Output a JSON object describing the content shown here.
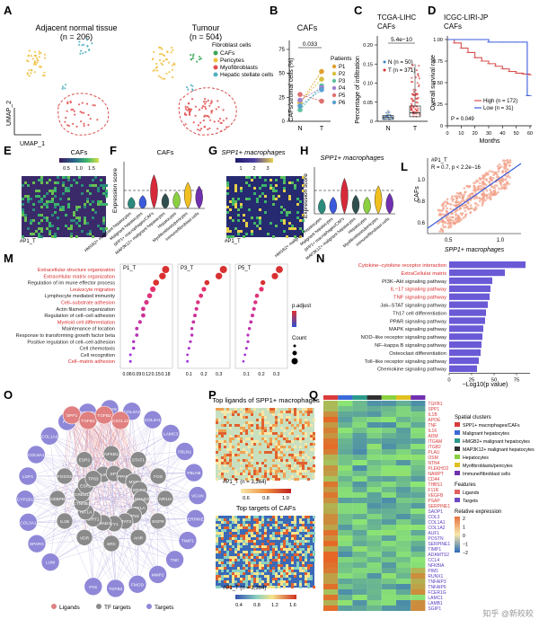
{
  "figure": {
    "watermark": "知乎 @新皎皎",
    "colors": {
      "red": "#d94f4f",
      "blue": "#3b5bdb",
      "purple": "#7b5bd6",
      "green": "#3aa655",
      "orange": "#f0a020",
      "teal": "#2a8a8a",
      "grey": "#8a8a8a"
    }
  },
  "panelA": {
    "label": "A",
    "left_title": "Adjacent normal tissue",
    "left_n": "(n = 206)",
    "right_title": "Tumour",
    "right_n": "(n = 504)",
    "axis_y": "UMAP_2",
    "axis_x": "UMAP_1",
    "legend_title": "Fibroblast cells",
    "legend": [
      {
        "name": "CAFs",
        "color": "#3aa655"
      },
      {
        "name": "Pericytes",
        "color": "#f0c040"
      },
      {
        "name": "Myofibroblasts",
        "color": "#e05050"
      },
      {
        "name": "Hepatic stellate cells",
        "color": "#50b0c0"
      }
    ]
  },
  "panelB": {
    "label": "B",
    "title": "CAFs",
    "ylabel": "CAFs/stromal cells (%)",
    "pval": "0.033",
    "legend_title": "Patients",
    "patients": [
      "P1",
      "P2",
      "P3",
      "P4",
      "P5",
      "P6"
    ],
    "chart_data": {
      "type": "scatter",
      "categories": [
        "N",
        "T"
      ],
      "ylim": [
        0,
        75
      ],
      "yticks": [
        "0",
        "25",
        "50",
        "75"
      ],
      "series": [
        {
          "name": "P1",
          "values": [
            19,
            52
          ]
        },
        {
          "name": "P2",
          "values": [
            20,
            44
          ]
        },
        {
          "name": "P3",
          "values": [
            12,
            37
          ]
        },
        {
          "name": "P4",
          "values": [
            22,
            35
          ]
        },
        {
          "name": "P5",
          "values": [
            28,
            21
          ]
        },
        {
          "name": "P6",
          "values": [
            16,
            33
          ]
        }
      ],
      "colors": [
        "#e0a030",
        "#d6c040",
        "#60c0a0",
        "#a080d0",
        "#e07070",
        "#5aa0d0"
      ]
    }
  },
  "panelC": {
    "label": "C",
    "title1": "TCGA-LIHC",
    "title2": "CAFs",
    "pval": "5.4e−10",
    "ylabel": "Percentage of infiltration",
    "legend": [
      "N (n = 50)",
      "T (n = 371)"
    ],
    "chart_data": {
      "type": "box",
      "categories": [
        "N",
        "T"
      ],
      "ylim": [
        0,
        0.2
      ],
      "yticks": [
        "0",
        "0.05",
        "0.10",
        "0.15",
        "0.20"
      ],
      "boxes": [
        {
          "name": "N",
          "q1": 0.005,
          "median": 0.01,
          "q3": 0.015,
          "whisker_high": 0.03
        },
        {
          "name": "T",
          "q1": 0.012,
          "median": 0.022,
          "q3": 0.04,
          "whisker_high": 0.15
        }
      ]
    }
  },
  "panelD": {
    "label": "D",
    "title1": "ICGC-LIRI-JP",
    "title2": "CAFs",
    "ylabel": "Overall survival rate",
    "xlabel": "Months",
    "pval": "P = 0.049",
    "legend": [
      {
        "name": "High (n = 172)",
        "color": "#d94f4f"
      },
      {
        "name": "Low (n = 31)",
        "color": "#3b5bdb"
      }
    ],
    "chart_data": {
      "type": "line",
      "xlim": [
        0,
        60
      ],
      "ylim": [
        0,
        1.0
      ],
      "xticks": [
        "0",
        "10",
        "20",
        "30",
        "40",
        "50",
        "60"
      ],
      "yticks": [
        "0",
        "0.25",
        "0.50",
        "0.75",
        "1.00"
      ],
      "series": [
        {
          "name": "High",
          "x": [
            0,
            5,
            10,
            15,
            20,
            25,
            30,
            35,
            40,
            45,
            50,
            55,
            60
          ],
          "y": [
            1.0,
            0.96,
            0.9,
            0.85,
            0.79,
            0.75,
            0.72,
            0.69,
            0.66,
            0.63,
            0.61,
            0.6,
            0.59
          ]
        },
        {
          "name": "Low",
          "x": [
            0,
            10,
            20,
            30,
            40,
            45,
            50,
            55,
            58,
            60
          ],
          "y": [
            1.0,
            1.0,
            1.0,
            0.97,
            0.97,
            0.97,
            0.97,
            0.97,
            0.35,
            0.35
          ]
        }
      ]
    }
  },
  "panelE": {
    "label": "E",
    "title": "CAFs",
    "sample": "#P1_T",
    "scale": [
      "0.5",
      "1.0",
      "1.5"
    ]
  },
  "panelF": {
    "label": "F",
    "title": "CAFs",
    "ylabel": "Expression score",
    "groups": [
      "HMGB2+ malignant hepatocytes",
      "Malignant hepatocytes",
      "SPP1+ macrophages/CAFs",
      "MAP3K12+ malignant hepatocytes",
      "Hepatocytes",
      "Myofibroblasts/pericytes",
      "Immune/fibroblast cells"
    ],
    "chart_data": {
      "type": "violin",
      "values": [
        0.3,
        0.35,
        0.9,
        0.4,
        0.45,
        0.7,
        0.6
      ],
      "ylim": [
        0,
        1.2
      ]
    }
  },
  "panelG": {
    "label": "G",
    "title": "SPP1+ macrophages",
    "sample": "#P1_T",
    "scale": [
      "1",
      "2",
      "3"
    ]
  },
  "panelH": {
    "label": "H",
    "title": "SPP1+ macrophages",
    "ylabel": "Expression score",
    "groups": [
      "HMGB2+ malignant hepatocytes",
      "Malignant hepatocytes",
      "SPP1+ macrophages/CAFs",
      "MAP3K12+ malignant hepatocytes",
      "Hepatocytes",
      "Myofibroblasts/pericytes",
      "Immune/fibroblast cells"
    ],
    "chart_data": {
      "type": "violin",
      "values": [
        0.4,
        0.45,
        0.95,
        0.5,
        0.45,
        0.75,
        0.55
      ],
      "ylim": [
        0,
        1.2
      ]
    }
  },
  "panelL": {
    "label": "L",
    "sample": "#P1_T",
    "stats": "R = 0.7, p < 2.2e−16",
    "ylabel": "CAFs",
    "xlabel": "SPP1+ macrophages",
    "chart_data": {
      "type": "scatter",
      "xlim": [
        0.3,
        1.2
      ],
      "ylim": [
        0.5,
        1.2
      ],
      "xticks": [
        "0.5",
        "1.0"
      ],
      "yticks": [
        "0.6",
        "0.8",
        "1.0"
      ],
      "fit": {
        "x": [
          0.3,
          1.2
        ],
        "y": [
          0.55,
          1.15
        ]
      }
    }
  },
  "panelM": {
    "label": "M",
    "terms": [
      "Extracellular structure organization",
      "Extracellular matrix organization",
      "Regulation of im mune effector process",
      "Leukocyte migration",
      "Lymphocyte mediated immunity",
      "Cell–substrate adhesion",
      "Actin filament organization",
      "Regulation of cell–cell adhesion",
      "Myeloid cell differentiation",
      "Maintenance of location",
      "Response to transforming growth factor beta",
      "Positive regulation of cell–cell adhesion",
      "Cell chemotaxis",
      "Cell recognition",
      "Cell–matrix adhesion"
    ],
    "highlight": [
      0,
      1,
      3,
      5,
      8,
      14
    ],
    "sub": [
      "P1_T",
      "P3_T",
      "P5_T"
    ],
    "legend_padj": "p.adjust",
    "legend_count": "Count",
    "chart_data": {
      "type": "scatter",
      "facets": [
        {
          "name": "P1_T",
          "xticks": [
            "0.06",
            "0.09",
            "0.12",
            "0.15",
            "0.18"
          ],
          "xlim": [
            0.05,
            0.19
          ],
          "x": [
            0.18,
            0.17,
            0.15,
            0.14,
            0.13,
            0.12,
            0.11,
            0.11,
            0.1,
            0.09,
            0.09,
            0.08,
            0.08,
            0.07,
            0.07
          ]
        },
        {
          "name": "P3_T",
          "xticks": [
            "0.1",
            "0.2",
            "0.3"
          ],
          "xlim": [
            0.05,
            0.35
          ],
          "x": [
            0.33,
            0.3,
            0.22,
            0.2,
            0.18,
            0.16,
            0.15,
            0.14,
            0.13,
            0.12,
            0.12,
            0.11,
            0.1,
            0.09,
            0.09
          ]
        },
        {
          "name": "P5_T",
          "xticks": [
            "0.1",
            "0.2",
            "0.3"
          ],
          "xlim": [
            0.05,
            0.35
          ],
          "x": [
            0.32,
            0.29,
            0.21,
            0.2,
            0.17,
            0.16,
            0.15,
            0.14,
            0.13,
            0.12,
            0.11,
            0.11,
            0.1,
            0.09,
            0.08
          ]
        }
      ]
    }
  },
  "panelN": {
    "label": "N",
    "xlabel": "−Log10(p value)",
    "chart_data": {
      "type": "bar",
      "categories": [
        "Cytokine–cytokine receptor interaction",
        "ExtraCellular matrix",
        "PI3K–Akt signaling pathway",
        "IL−17 signaling pathway",
        "TNF signaling pathway",
        "Jak–STAT signaling pathway",
        "Th17 cell differentiation",
        "PPAR signaling pathway",
        "MAPK signaling pathway",
        "NOD–like receptor signaling pathway",
        "NF–kappa B signaling pathway",
        "Osteoclast differentiation",
        "Toll–like receptor signaling pathway",
        "Chemokine signaling pathway"
      ],
      "values": [
        85,
        62,
        48,
        46,
        45,
        43,
        41,
        40,
        38,
        37,
        36,
        35,
        33,
        31
      ],
      "xticks": [
        "0",
        "25",
        "50",
        "75"
      ],
      "xlim": [
        0,
        90
      ],
      "highlight": [
        0,
        1,
        3,
        4
      ]
    }
  },
  "panelO": {
    "label": "O",
    "legend": [
      {
        "name": "Ligands",
        "color": "#e08080"
      },
      {
        "name": "TF targets",
        "color": "#8a8a8a"
      },
      {
        "name": "Targets",
        "color": "#8f88d8"
      }
    ],
    "ligands": [
      "SPP1",
      "TGFB1",
      "TGFB2",
      "CXCL12"
    ],
    "tfs": [
      "NR1I3",
      "EGFR",
      "AHR",
      "SRC",
      "VDR",
      "IL1B",
      "CEBPB",
      "FOXO1",
      "ESR1",
      "NFKB1",
      "STAT1",
      "FOS",
      "JUN",
      "SP1",
      "PPARG",
      "MYC",
      "EP300",
      "SMAD3",
      "RELA",
      "TP53",
      "STAT3",
      "YY1",
      "SMAD4",
      "SIRT1",
      "HIF1A",
      "CTNNB1",
      "CREB1",
      "ESR2",
      "TP63"
    ],
    "targets": [
      "LUM",
      "SPARC",
      "COL3A1",
      "CYP1B1",
      "LGP1",
      "COL6A1",
      "COL1A2",
      "FAP",
      "POSTN",
      "LAMA5",
      "COL4A2",
      "COL4A1",
      "LAMC3",
      "FBLN1",
      "FBLN5",
      "VCAN",
      "SERPINE1",
      "TIMP1",
      "TNC",
      "MMP2",
      "FMOD",
      "TGFB3",
      "FN1"
    ]
  },
  "panelP": {
    "label": "P",
    "title_top": "Top ligands of SPP1+ macrophages",
    "title_bottom": "Top targets of CAFs",
    "sample_top": "#P1_T (n = 3,364)",
    "sample_bottom": "#P1_T (n = 3,364)",
    "scale_top": [
      "0.6",
      "0.8",
      "1.0"
    ],
    "scale_bottom": [
      "0.4",
      "0.8",
      "1.2",
      "1.6"
    ]
  },
  "panelQ": {
    "label": "Q",
    "genes": [
      "TGFB1",
      "SPP1",
      "IL1B",
      "APOE",
      "TNF",
      "IL16",
      "ADM",
      "ITGAM",
      "ITGB2",
      "PLAU",
      "OSM",
      "NTN4",
      "PLEKHO2",
      "NAMPT",
      "CD44",
      "THBS1",
      "F11R",
      "VEGFB",
      "PSAP",
      "SERPINE1",
      "SAOP1",
      "COL3",
      "COL1A1",
      "COL1A2",
      "AUF1",
      "POSTN",
      "SERPINE1",
      "TIMP1",
      "ADAMTS2",
      "CCL4",
      "NFKBIA",
      "PIM1",
      "RUNX1",
      "TNFAIP3",
      "TNFAIP6",
      "FCER1G",
      "LAMC1",
      "LAMB1",
      "SGIP1"
    ],
    "legend_clusters_title": "Spatial clusters",
    "legend_clusters": [
      {
        "name": "SPP1+ macrophages/CAFs",
        "color": "#d93a3a"
      },
      {
        "name": "Malignant hepatocytes",
        "color": "#3a6ad9"
      },
      {
        "name": "HMGB2+ malignant hepatocytes",
        "color": "#2a9a8a"
      },
      {
        "name": "MAP3K12+ malignant hepatocytes",
        "color": "#303030"
      },
      {
        "name": "Hepatocytes",
        "color": "#8ad040"
      },
      {
        "name": "Myofibroblasts/pericytes",
        "color": "#e0c020"
      },
      {
        "name": "Immune/fibroblast cells",
        "color": "#7030b0"
      }
    ],
    "legend_features_title": "Features",
    "legend_features": [
      {
        "name": "Ligands",
        "color": "#e06060"
      },
      {
        "name": "Targets",
        "color": "#6a4ac0"
      }
    ],
    "legend_expr_title": "Relative expression",
    "legend_expr_ticks": [
      "2",
      "1",
      "0",
      "−1",
      "−2"
    ]
  }
}
